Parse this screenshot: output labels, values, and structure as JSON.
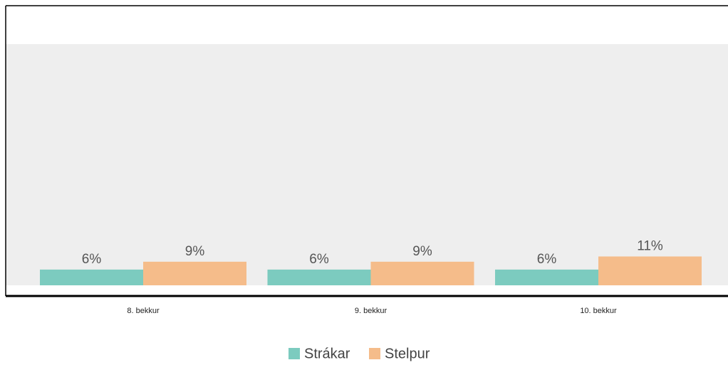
{
  "chart_data": {
    "type": "bar",
    "categories": [
      "8. bekkur",
      "9. bekkur",
      "10. bekkur"
    ],
    "series": [
      {
        "name": "Strákar",
        "color": "#7ccbbf",
        "values": [
          6,
          6,
          6
        ],
        "value_labels": [
          "6%",
          "6%",
          "6%"
        ]
      },
      {
        "name": "Stelpur",
        "color": "#f5bc8a",
        "values": [
          9,
          9,
          11
        ],
        "value_labels": [
          "9%",
          "9%",
          "11%"
        ]
      }
    ],
    "ylim": [
      0,
      92
    ]
  }
}
